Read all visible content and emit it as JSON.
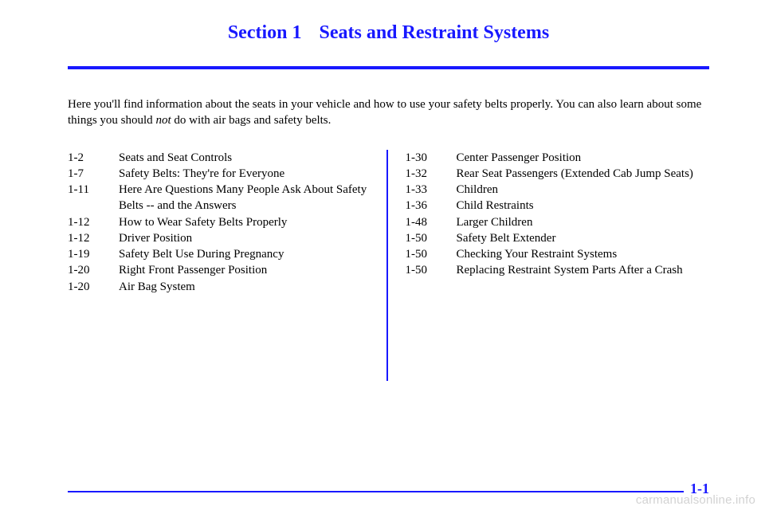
{
  "colors": {
    "accent": "#1818ff",
    "text": "#000000",
    "watermark": "rgba(0,0,0,0.18)",
    "background": "#ffffff"
  },
  "typography": {
    "body_family": "Times New Roman",
    "body_size_pt": 11,
    "title_size_pt": 18,
    "title_weight": "bold"
  },
  "title": {
    "section_label": "Section 1",
    "section_title": "Seats and Restraint Systems"
  },
  "intro": {
    "before_em": "Here you'll find information about the seats in your vehicle and how to use your safety belts properly. You can also learn about some things you should ",
    "em": "not",
    "after_em": " do with air bags and safety belts."
  },
  "toc": {
    "left": [
      {
        "page": "1-2",
        "title": "Seats and Seat Controls"
      },
      {
        "page": "1-7",
        "title": "Safety Belts: They're for Everyone"
      },
      {
        "page": "1-11",
        "title": "Here Are Questions Many People Ask About Safety Belts -- and the Answers"
      },
      {
        "page": "1-12",
        "title": "How to Wear Safety Belts Properly"
      },
      {
        "page": "1-12",
        "title": "Driver Position"
      },
      {
        "page": "1-19",
        "title": "Safety Belt Use During Pregnancy"
      },
      {
        "page": "1-20",
        "title": "Right Front Passenger Position"
      },
      {
        "page": "1-20",
        "title": "Air Bag System"
      }
    ],
    "right": [
      {
        "page": "1-30",
        "title": "Center Passenger Position"
      },
      {
        "page": "1-32",
        "title": "Rear Seat Passengers (Extended Cab Jump Seats)"
      },
      {
        "page": "1-33",
        "title": "Children"
      },
      {
        "page": "1-36",
        "title": "Child Restraints"
      },
      {
        "page": "1-48",
        "title": "Larger Children"
      },
      {
        "page": "1-50",
        "title": "Safety Belt Extender"
      },
      {
        "page": "1-50",
        "title": "Checking Your Restraint Systems"
      },
      {
        "page": "1-50",
        "title": "Replacing Restraint System Parts After a Crash"
      }
    ]
  },
  "footer": {
    "page_number": "1-1"
  },
  "watermark": "carmanualsonline.info"
}
